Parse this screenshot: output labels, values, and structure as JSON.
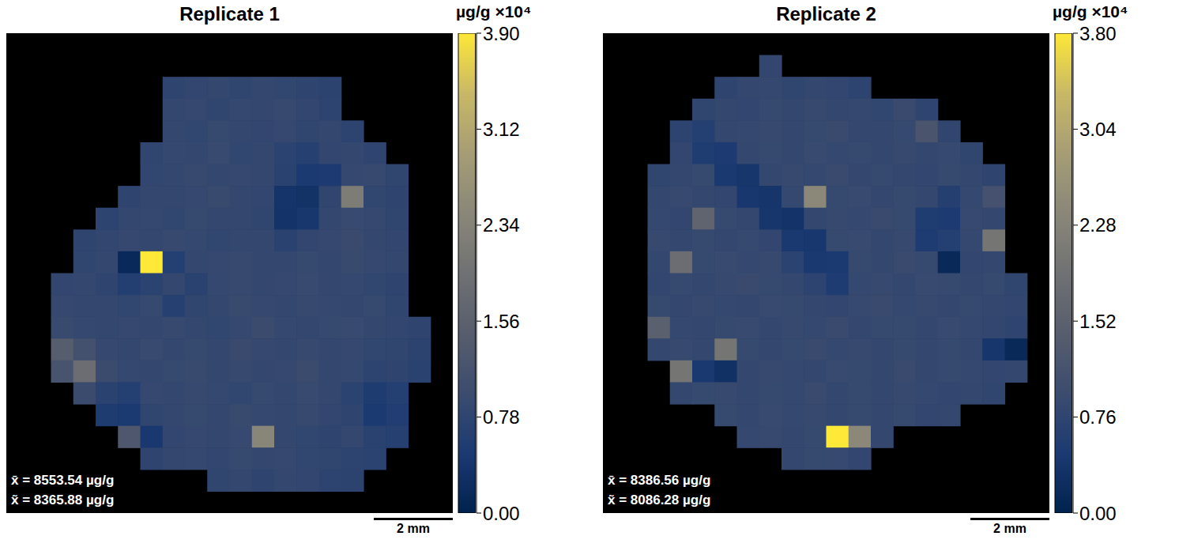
{
  "chart_data": [
    {
      "type": "heatmap",
      "title": "Replicate 1",
      "tick_labels": false,
      "annotations": [
        "x̄ = 8553.54 µg/g",
        "x̃ = 8365.88 µg/g"
      ],
      "scale_bar": "2 mm",
      "colorbar": {
        "label": "µg/g ×10⁴",
        "lim": [
          0,
          3.9
        ],
        "ticks": [
          {
            "value": 0,
            "label": "0.00"
          },
          0.78,
          1.56,
          2.34,
          3.12,
          {
            "value": 3.9,
            "label": "3.90"
          }
        ]
      },
      "cells": [
        [
          null,
          null,
          null,
          null,
          null,
          null,
          null,
          null,
          null,
          null,
          null,
          null,
          null,
          null,
          null,
          null,
          null,
          null,
          null,
          null
        ],
        [
          null,
          null,
          null,
          null,
          null,
          null,
          null,
          null,
          null,
          null,
          null,
          null,
          null,
          null,
          null,
          null,
          null,
          null,
          null,
          null
        ],
        [
          null,
          null,
          null,
          null,
          null,
          null,
          null,
          0.78,
          0.82,
          0.85,
          0.8,
          0.86,
          0.83,
          0.79,
          0.74,
          null,
          null,
          null,
          null,
          null
        ],
        [
          null,
          null,
          null,
          null,
          null,
          null,
          null,
          0.84,
          0.88,
          0.81,
          0.87,
          0.85,
          0.9,
          0.82,
          0.77,
          null,
          null,
          null,
          null,
          null
        ],
        [
          null,
          null,
          null,
          null,
          null,
          null,
          null,
          0.86,
          0.83,
          0.89,
          0.84,
          0.82,
          0.88,
          0.8,
          0.84,
          0.76,
          null,
          null,
          null,
          null
        ],
        [
          null,
          null,
          null,
          null,
          null,
          null,
          0.8,
          0.87,
          0.85,
          0.91,
          0.83,
          0.86,
          0.72,
          0.65,
          0.82,
          0.85,
          0.79,
          null,
          null,
          null
        ],
        [
          null,
          null,
          null,
          null,
          null,
          null,
          0.83,
          0.85,
          0.9,
          0.86,
          0.88,
          0.84,
          0.7,
          0.48,
          0.52,
          0.87,
          0.9,
          0.81,
          null,
          null
        ],
        [
          null,
          null,
          null,
          null,
          null,
          0.79,
          0.86,
          0.84,
          0.88,
          0.92,
          0.85,
          0.82,
          0.38,
          0.34,
          0.8,
          2.2,
          0.83,
          0.78,
          null,
          null
        ],
        [
          null,
          null,
          null,
          null,
          0.76,
          0.84,
          0.87,
          0.83,
          0.89,
          0.86,
          0.84,
          0.8,
          0.36,
          0.42,
          0.85,
          0.91,
          0.88,
          0.8,
          null,
          null
        ],
        [
          null,
          null,
          null,
          0.78,
          0.82,
          0.88,
          0.85,
          0.9,
          0.87,
          0.83,
          0.86,
          0.84,
          0.7,
          0.82,
          0.88,
          0.93,
          0.86,
          0.82,
          null,
          null
        ],
        [
          null,
          null,
          null,
          0.8,
          0.86,
          0.15,
          3.9,
          0.62,
          0.85,
          0.88,
          0.9,
          0.84,
          0.86,
          0.89,
          0.85,
          0.92,
          0.88,
          0.84,
          null,
          null
        ],
        [
          null,
          null,
          0.82,
          0.85,
          0.78,
          0.6,
          0.72,
          0.84,
          0.7,
          0.87,
          0.9,
          0.86,
          0.88,
          0.91,
          0.84,
          0.87,
          0.83,
          0.79,
          null,
          null
        ],
        [
          null,
          null,
          0.88,
          0.84,
          0.86,
          0.83,
          0.89,
          0.65,
          0.8,
          0.86,
          0.92,
          0.88,
          0.85,
          0.9,
          0.87,
          0.84,
          0.89,
          0.81,
          null,
          null
        ],
        [
          null,
          null,
          0.92,
          0.87,
          0.85,
          0.88,
          0.84,
          0.9,
          0.86,
          0.83,
          0.88,
          0.94,
          0.87,
          0.85,
          0.89,
          0.91,
          0.86,
          0.82,
          0.78,
          null
        ],
        [
          null,
          null,
          1.45,
          1.1,
          0.88,
          0.84,
          0.91,
          0.86,
          0.89,
          0.85,
          0.93,
          0.88,
          0.84,
          0.9,
          0.86,
          0.88,
          0.83,
          0.8,
          0.74,
          null
        ],
        [
          null,
          null,
          1.2,
          1.85,
          0.95,
          0.87,
          0.84,
          0.89,
          0.92,
          0.86,
          0.9,
          0.85,
          0.88,
          0.96,
          0.84,
          0.87,
          0.75,
          0.78,
          0.7,
          null
        ],
        [
          null,
          null,
          null,
          0.95,
          0.7,
          0.62,
          0.88,
          0.85,
          0.9,
          0.87,
          0.83,
          0.89,
          0.86,
          0.91,
          0.84,
          0.72,
          0.55,
          0.62,
          null,
          null
        ],
        [
          null,
          null,
          null,
          null,
          0.55,
          0.48,
          0.8,
          0.86,
          0.89,
          0.84,
          0.92,
          0.87,
          0.85,
          0.9,
          0.82,
          0.78,
          0.5,
          0.58,
          null,
          null
        ],
        [
          null,
          null,
          null,
          null,
          null,
          1.3,
          0.45,
          0.82,
          0.88,
          0.85,
          0.9,
          2.4,
          0.86,
          0.83,
          0.79,
          0.84,
          0.7,
          0.65,
          null,
          null
        ],
        [
          null,
          null,
          null,
          null,
          null,
          null,
          0.78,
          0.84,
          0.87,
          0.82,
          0.89,
          0.85,
          0.88,
          0.83,
          0.8,
          0.76,
          0.72,
          null,
          null,
          null
        ],
        [
          null,
          null,
          null,
          null,
          null,
          null,
          null,
          null,
          null,
          0.8,
          0.84,
          0.79,
          0.86,
          0.82,
          0.77,
          0.74,
          null,
          null,
          null,
          null
        ],
        [
          null,
          null,
          null,
          null,
          null,
          null,
          null,
          null,
          null,
          null,
          null,
          null,
          null,
          null,
          null,
          null,
          null,
          null,
          null,
          null
        ]
      ]
    },
    {
      "type": "heatmap",
      "title": "Replicate 2",
      "tick_labels": false,
      "annotations": [
        "x̄ = 8386.56 µg/g",
        "x̃ = 8086.28 µg/g"
      ],
      "scale_bar": "2 mm",
      "colorbar": {
        "label": "µg/g ×10⁴",
        "lim": [
          0,
          3.8
        ],
        "ticks": [
          {
            "value": 0,
            "label": "0.00"
          },
          0.76,
          1.52,
          2.28,
          3.04,
          {
            "value": 3.8,
            "label": "3.80"
          }
        ]
      },
      "cells": [
        [
          null,
          null,
          null,
          null,
          null,
          null,
          null,
          null,
          null,
          null,
          null,
          null,
          null,
          null,
          null,
          null,
          null,
          null,
          null,
          null
        ],
        [
          null,
          null,
          null,
          null,
          null,
          null,
          null,
          0.8,
          null,
          null,
          null,
          null,
          null,
          null,
          null,
          null,
          null,
          null,
          null,
          null
        ],
        [
          null,
          null,
          null,
          null,
          null,
          0.76,
          0.82,
          0.85,
          0.79,
          0.84,
          0.8,
          0.74,
          null,
          null,
          null,
          null,
          null,
          null,
          null,
          null
        ],
        [
          null,
          null,
          null,
          null,
          0.78,
          0.84,
          0.8,
          0.86,
          0.82,
          0.88,
          0.83,
          0.85,
          0.81,
          0.9,
          0.77,
          null,
          null,
          null,
          null,
          null
        ],
        [
          null,
          null,
          null,
          0.74,
          0.6,
          0.82,
          0.85,
          0.88,
          0.83,
          0.86,
          0.9,
          0.84,
          0.82,
          0.87,
          1.2,
          0.79,
          null,
          null,
          null,
          null
        ],
        [
          null,
          null,
          null,
          0.8,
          0.55,
          0.5,
          0.84,
          0.86,
          0.82,
          0.89,
          0.85,
          0.87,
          0.83,
          0.88,
          0.84,
          0.86,
          0.78,
          null,
          null,
          null
        ],
        [
          null,
          null,
          0.79,
          0.83,
          0.86,
          0.45,
          0.4,
          0.82,
          0.88,
          0.85,
          0.9,
          0.84,
          0.86,
          0.83,
          0.8,
          0.87,
          0.84,
          0.76,
          null,
          null
        ],
        [
          null,
          null,
          0.82,
          0.88,
          0.84,
          0.8,
          0.42,
          0.38,
          0.85,
          2.4,
          0.86,
          0.89,
          0.84,
          0.87,
          0.82,
          0.62,
          0.85,
          1.1,
          null,
          null
        ],
        [
          null,
          null,
          0.85,
          0.8,
          1.6,
          0.86,
          0.83,
          0.4,
          0.36,
          0.84,
          0.88,
          0.85,
          0.9,
          0.86,
          0.55,
          0.5,
          0.88,
          0.82,
          null,
          null
        ],
        [
          null,
          null,
          0.88,
          0.84,
          0.87,
          0.82,
          0.86,
          0.8,
          0.45,
          0.42,
          0.86,
          0.89,
          0.84,
          0.88,
          0.52,
          0.6,
          0.85,
          2.0,
          null,
          null
        ],
        [
          null,
          null,
          0.84,
          1.8,
          0.86,
          0.89,
          0.85,
          0.88,
          0.7,
          0.46,
          0.48,
          0.87,
          0.84,
          0.9,
          0.86,
          0.15,
          0.8,
          0.84,
          null,
          null
        ],
        [
          null,
          null,
          0.8,
          0.87,
          0.84,
          0.88,
          0.9,
          0.86,
          0.83,
          0.75,
          0.52,
          0.85,
          0.88,
          0.84,
          0.89,
          0.86,
          0.82,
          0.87,
          0.78,
          null
        ],
        [
          null,
          null,
          0.86,
          0.83,
          0.88,
          0.85,
          0.82,
          0.89,
          0.86,
          0.84,
          0.8,
          0.87,
          0.91,
          0.85,
          0.88,
          0.84,
          0.86,
          0.83,
          0.8,
          null
        ],
        [
          null,
          null,
          1.5,
          0.85,
          0.82,
          0.86,
          0.89,
          0.84,
          0.88,
          0.85,
          0.9,
          0.83,
          0.87,
          0.86,
          0.84,
          0.89,
          0.85,
          0.8,
          0.76,
          null
        ],
        [
          null,
          null,
          0.82,
          0.88,
          0.84,
          2.0,
          0.86,
          0.83,
          0.87,
          0.9,
          0.85,
          0.88,
          0.84,
          0.86,
          0.82,
          0.87,
          0.84,
          0.4,
          0.15,
          null
        ],
        [
          null,
          null,
          null,
          2.0,
          0.45,
          0.3,
          0.84,
          0.88,
          0.85,
          0.82,
          0.89,
          0.86,
          0.84,
          0.9,
          0.83,
          0.87,
          0.85,
          0.8,
          0.82,
          null
        ],
        [
          null,
          null,
          null,
          0.84,
          0.86,
          0.88,
          0.83,
          0.87,
          0.85,
          0.9,
          0.84,
          0.86,
          0.82,
          0.88,
          0.85,
          0.8,
          0.83,
          0.78,
          null,
          null
        ],
        [
          null,
          null,
          null,
          null,
          null,
          0.86,
          0.84,
          0.89,
          0.85,
          0.88,
          0.83,
          0.87,
          0.84,
          0.86,
          0.8,
          0.82,
          null,
          null,
          null,
          null
        ],
        [
          null,
          null,
          null,
          null,
          null,
          null,
          0.85,
          0.88,
          0.84,
          0.86,
          3.8,
          2.4,
          0.82,
          null,
          null,
          null,
          null,
          null,
          null,
          null
        ],
        [
          null,
          null,
          null,
          null,
          null,
          null,
          null,
          null,
          0.84,
          0.86,
          0.88,
          0.8,
          null,
          null,
          null,
          null,
          null,
          null,
          null,
          null
        ],
        [
          null,
          null,
          null,
          null,
          null,
          null,
          null,
          null,
          null,
          null,
          null,
          null,
          null,
          null,
          null,
          null,
          null,
          null,
          null,
          null
        ],
        [
          null,
          null,
          null,
          null,
          null,
          null,
          null,
          null,
          null,
          null,
          null,
          null,
          null,
          null,
          null,
          null,
          null,
          null,
          null,
          null
        ]
      ]
    }
  ]
}
